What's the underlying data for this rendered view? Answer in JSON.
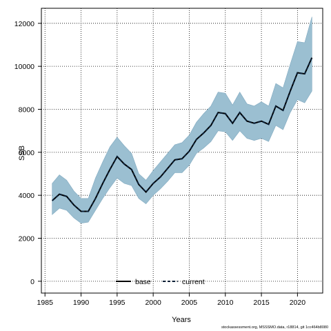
{
  "chart_data": {
    "type": "line",
    "xlabel": "Years",
    "ylabel": "SSB",
    "xlim": [
      1984.5,
      2023.5
    ],
    "ylim": [
      -550,
      12700
    ],
    "xticks": [
      1985,
      1990,
      1995,
      2000,
      2005,
      2010,
      2015,
      2020
    ],
    "yticks": [
      0,
      2000,
      4000,
      6000,
      8000,
      10000,
      12000
    ],
    "grid": true,
    "legend_position": "bottom-center",
    "x": [
      1986,
      1987,
      1988,
      1989,
      1990,
      1991,
      1992,
      1993,
      1994,
      1995,
      1996,
      1997,
      1998,
      1999,
      2000,
      2001,
      2002,
      2003,
      2004,
      2005,
      2006,
      2007,
      2008,
      2009,
      2010,
      2011,
      2012,
      2013,
      2014,
      2015,
      2016,
      2017,
      2018,
      2019,
      2020,
      2021,
      2022
    ],
    "series": [
      {
        "name": "base",
        "style": "solid",
        "color": "#000000",
        "values": [
          3750,
          4050,
          3950,
          3550,
          3250,
          3250,
          3850,
          4550,
          5200,
          5800,
          5450,
          5200,
          4500,
          4150,
          4550,
          4850,
          5250,
          5650,
          5700,
          6050,
          6600,
          6900,
          7250,
          7850,
          7800,
          7350,
          7850,
          7450,
          7350,
          7450,
          7300,
          8150,
          7950,
          8850,
          9700,
          9650,
          10400
        ]
      },
      {
        "name": "current",
        "style": "dashed",
        "color": "#0a1f36",
        "values": [
          3750,
          4050,
          3950,
          3550,
          3250,
          3250,
          3850,
          4550,
          5200,
          5800,
          5450,
          5200,
          4500,
          4150,
          4550,
          4850,
          5250,
          5650,
          5700,
          6050,
          6600,
          6900,
          7250,
          7850,
          7800,
          7350,
          7850,
          7450,
          7350,
          7450,
          7300,
          8150,
          7950,
          8850,
          9700,
          9650,
          10400
        ]
      }
    ],
    "band": {
      "color": "#9bbfd1",
      "upper": [
        4550,
        4950,
        4700,
        4200,
        3850,
        3850,
        4800,
        5550,
        6250,
        6700,
        6300,
        5950,
        5000,
        4700,
        5150,
        5550,
        5950,
        6350,
        6450,
        6800,
        7400,
        7800,
        8150,
        8800,
        8750,
        8200,
        8800,
        8250,
        8150,
        8350,
        8150,
        9200,
        9000,
        10100,
        11150,
        11100,
        12300
      ],
      "lower": [
        3100,
        3400,
        3300,
        2950,
        2700,
        2750,
        3300,
        3850,
        4350,
        4800,
        4550,
        4450,
        3850,
        3600,
        4000,
        4300,
        4650,
        5050,
        5050,
        5400,
        5950,
        6200,
        6500,
        7000,
        6950,
        6550,
        7000,
        6650,
        6550,
        6650,
        6500,
        7250,
        7050,
        7850,
        8450,
        8300,
        8850
      ]
    },
    "footnote": "stockassessment.org, MSSSMO.data, r18814, git 1cc464b8080"
  }
}
